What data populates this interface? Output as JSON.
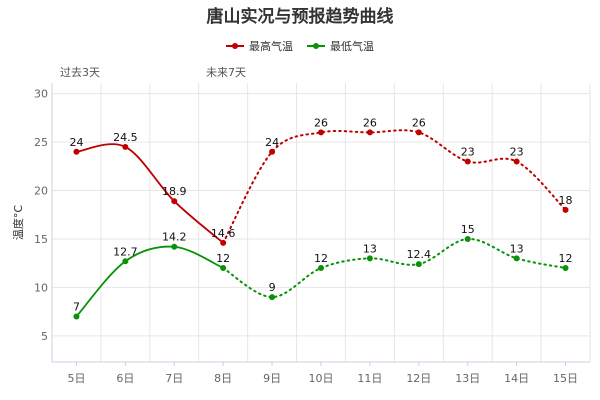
{
  "chart_data": {
    "type": "line",
    "title": "唐山实况与预报趋势曲线",
    "ylabel": "温度°C",
    "categories": [
      "5日",
      "6日",
      "7日",
      "8日",
      "9日",
      "10日",
      "11日",
      "12日",
      "13日",
      "14日",
      "15日"
    ],
    "ylim": [
      0,
      30
    ],
    "yticks": [
      5,
      10,
      15,
      20,
      25,
      30
    ],
    "grid": true,
    "legend_position": "top-center",
    "period_labels": {
      "past": "过去3天",
      "future": "未来7天"
    },
    "observed_count": 4,
    "series": [
      {
        "name": "最高气温",
        "color": "#c00000",
        "values": [
          24,
          24.5,
          18.9,
          14.6,
          24,
          26,
          26,
          26,
          23,
          23,
          18
        ],
        "labels": [
          "24",
          "24.5",
          "18.9",
          "14.6",
          "24",
          "26",
          "26",
          "26",
          "23",
          "23",
          "18"
        ]
      },
      {
        "name": "最低气温",
        "color": "#089208",
        "values": [
          7,
          12.7,
          14.2,
          12,
          9,
          12,
          13,
          12.4,
          15,
          13,
          12
        ],
        "labels": [
          "7",
          "12.7",
          "14.2",
          "12",
          "9",
          "12",
          "13",
          "12.4",
          "15",
          "13",
          "12"
        ]
      }
    ]
  }
}
